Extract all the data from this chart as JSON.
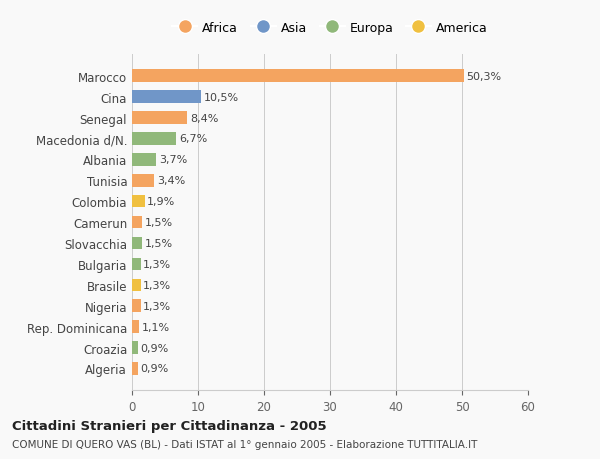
{
  "categories": [
    "Algeria",
    "Croazia",
    "Rep. Dominicana",
    "Nigeria",
    "Brasile",
    "Bulgaria",
    "Slovacchia",
    "Camerun",
    "Colombia",
    "Tunisia",
    "Albania",
    "Macedonia d/N.",
    "Senegal",
    "Cina",
    "Marocco"
  ],
  "values": [
    0.9,
    0.9,
    1.1,
    1.3,
    1.3,
    1.3,
    1.5,
    1.5,
    1.9,
    3.4,
    3.7,
    6.7,
    8.4,
    10.5,
    50.3
  ],
  "colors": [
    "#F4A460",
    "#90B87A",
    "#F4A460",
    "#F4A460",
    "#F0C040",
    "#90B87A",
    "#90B87A",
    "#F4A460",
    "#F0C040",
    "#F4A460",
    "#90B87A",
    "#90B87A",
    "#F4A460",
    "#7096C8",
    "#F4A460"
  ],
  "labels": [
    "0,9%",
    "0,9%",
    "1,1%",
    "1,3%",
    "1,3%",
    "1,3%",
    "1,5%",
    "1,5%",
    "1,9%",
    "3,4%",
    "3,7%",
    "6,7%",
    "8,4%",
    "10,5%",
    "50,3%"
  ],
  "legend": [
    {
      "label": "Africa",
      "color": "#F4A460"
    },
    {
      "label": "Asia",
      "color": "#7096C8"
    },
    {
      "label": "Europa",
      "color": "#90B87A"
    },
    {
      "label": "America",
      "color": "#F0C040"
    }
  ],
  "title": "Cittadini Stranieri per Cittadinanza - 2005",
  "subtitle": "COMUNE DI QUERO VAS (BL) - Dati ISTAT al 1° gennaio 2005 - Elaborazione TUTTITALIA.IT",
  "xlim": [
    0,
    60
  ],
  "xticks": [
    0,
    10,
    20,
    30,
    40,
    50,
    60
  ],
  "background_color": "#f9f9f9",
  "bar_height": 0.6
}
